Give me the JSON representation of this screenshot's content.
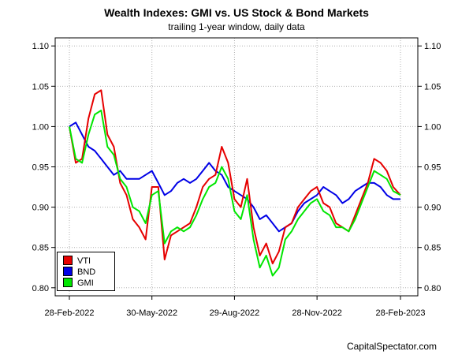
{
  "chart_data": {
    "type": "line",
    "title": "Wealth Indexes: GMI vs. US Stock & Bond Markets",
    "subtitle": "trailing 1-year window, daily data",
    "xlabel": "",
    "ylabel": "",
    "x_range": [
      "2022-02-28",
      "2023-02-28"
    ],
    "ylim": [
      0.79,
      1.11
    ],
    "y_ticks": [
      "0.80",
      "0.85",
      "0.90",
      "0.95",
      "1.00",
      "1.05",
      "1.10"
    ],
    "x_ticks": [
      {
        "date": "2022-02-28",
        "label": "28-Feb-2022"
      },
      {
        "date": "2022-05-30",
        "label": "30-May-2022"
      },
      {
        "date": "2022-08-29",
        "label": "29-Aug-2022"
      },
      {
        "date": "2022-11-28",
        "label": "28-Nov-2022"
      },
      {
        "date": "2023-02-28",
        "label": "28-Feb-2023"
      }
    ],
    "grid": true,
    "legend_position": "bottom-left",
    "series": [
      {
        "name": "VTI",
        "color": "#e60000",
        "points": [
          [
            "2022-02-28",
            1.0
          ],
          [
            "2022-03-07",
            0.955
          ],
          [
            "2022-03-14",
            0.96
          ],
          [
            "2022-03-21",
            1.01
          ],
          [
            "2022-03-28",
            1.04
          ],
          [
            "2022-04-04",
            1.045
          ],
          [
            "2022-04-11",
            0.99
          ],
          [
            "2022-04-18",
            0.975
          ],
          [
            "2022-04-25",
            0.93
          ],
          [
            "2022-05-02",
            0.915
          ],
          [
            "2022-05-09",
            0.885
          ],
          [
            "2022-05-16",
            0.875
          ],
          [
            "2022-05-23",
            0.86
          ],
          [
            "2022-05-30",
            0.925
          ],
          [
            "2022-06-06",
            0.925
          ],
          [
            "2022-06-13",
            0.835
          ],
          [
            "2022-06-20",
            0.865
          ],
          [
            "2022-06-27",
            0.87
          ],
          [
            "2022-07-04",
            0.875
          ],
          [
            "2022-07-11",
            0.88
          ],
          [
            "2022-07-18",
            0.9
          ],
          [
            "2022-07-25",
            0.925
          ],
          [
            "2022-08-01",
            0.935
          ],
          [
            "2022-08-08",
            0.94
          ],
          [
            "2022-08-15",
            0.975
          ],
          [
            "2022-08-22",
            0.955
          ],
          [
            "2022-08-29",
            0.91
          ],
          [
            "2022-09-05",
            0.9
          ],
          [
            "2022-09-12",
            0.935
          ],
          [
            "2022-09-19",
            0.875
          ],
          [
            "2022-09-26",
            0.84
          ],
          [
            "2022-10-03",
            0.855
          ],
          [
            "2022-10-10",
            0.83
          ],
          [
            "2022-10-17",
            0.845
          ],
          [
            "2022-10-24",
            0.875
          ],
          [
            "2022-10-31",
            0.88
          ],
          [
            "2022-11-07",
            0.9
          ],
          [
            "2022-11-14",
            0.91
          ],
          [
            "2022-11-21",
            0.92
          ],
          [
            "2022-11-28",
            0.925
          ],
          [
            "2022-12-05",
            0.905
          ],
          [
            "2022-12-12",
            0.9
          ],
          [
            "2022-12-19",
            0.88
          ],
          [
            "2022-12-26",
            0.875
          ],
          [
            "2023-01-02",
            0.87
          ],
          [
            "2023-01-09",
            0.89
          ],
          [
            "2023-01-16",
            0.91
          ],
          [
            "2023-01-23",
            0.93
          ],
          [
            "2023-01-30",
            0.96
          ],
          [
            "2023-02-06",
            0.955
          ],
          [
            "2023-02-13",
            0.945
          ],
          [
            "2023-02-20",
            0.925
          ],
          [
            "2023-02-28",
            0.915
          ]
        ]
      },
      {
        "name": "BND",
        "color": "#0000e6",
        "points": [
          [
            "2022-02-28",
            1.0
          ],
          [
            "2022-03-07",
            1.005
          ],
          [
            "2022-03-14",
            0.99
          ],
          [
            "2022-03-21",
            0.975
          ],
          [
            "2022-03-28",
            0.97
          ],
          [
            "2022-04-04",
            0.96
          ],
          [
            "2022-04-11",
            0.95
          ],
          [
            "2022-04-18",
            0.94
          ],
          [
            "2022-04-25",
            0.945
          ],
          [
            "2022-05-02",
            0.935
          ],
          [
            "2022-05-09",
            0.935
          ],
          [
            "2022-05-16",
            0.935
          ],
          [
            "2022-05-23",
            0.94
          ],
          [
            "2022-05-30",
            0.945
          ],
          [
            "2022-06-06",
            0.93
          ],
          [
            "2022-06-13",
            0.915
          ],
          [
            "2022-06-20",
            0.92
          ],
          [
            "2022-06-27",
            0.93
          ],
          [
            "2022-07-04",
            0.935
          ],
          [
            "2022-07-11",
            0.93
          ],
          [
            "2022-07-18",
            0.935
          ],
          [
            "2022-07-25",
            0.945
          ],
          [
            "2022-08-01",
            0.955
          ],
          [
            "2022-08-08",
            0.945
          ],
          [
            "2022-08-15",
            0.94
          ],
          [
            "2022-08-22",
            0.925
          ],
          [
            "2022-08-29",
            0.92
          ],
          [
            "2022-09-05",
            0.915
          ],
          [
            "2022-09-12",
            0.91
          ],
          [
            "2022-09-19",
            0.9
          ],
          [
            "2022-09-26",
            0.885
          ],
          [
            "2022-10-03",
            0.89
          ],
          [
            "2022-10-10",
            0.88
          ],
          [
            "2022-10-17",
            0.87
          ],
          [
            "2022-10-24",
            0.875
          ],
          [
            "2022-10-31",
            0.88
          ],
          [
            "2022-11-07",
            0.895
          ],
          [
            "2022-11-14",
            0.905
          ],
          [
            "2022-11-21",
            0.91
          ],
          [
            "2022-11-28",
            0.915
          ],
          [
            "2022-12-05",
            0.925
          ],
          [
            "2022-12-12",
            0.92
          ],
          [
            "2022-12-19",
            0.915
          ],
          [
            "2022-12-26",
            0.905
          ],
          [
            "2023-01-02",
            0.91
          ],
          [
            "2023-01-09",
            0.92
          ],
          [
            "2023-01-16",
            0.925
          ],
          [
            "2023-01-23",
            0.93
          ],
          [
            "2023-01-30",
            0.93
          ],
          [
            "2023-02-06",
            0.925
          ],
          [
            "2023-02-13",
            0.915
          ],
          [
            "2023-02-20",
            0.91
          ],
          [
            "2023-02-28",
            0.91
          ]
        ]
      },
      {
        "name": "GMI",
        "color": "#00e600",
        "points": [
          [
            "2022-02-28",
            1.0
          ],
          [
            "2022-03-07",
            0.96
          ],
          [
            "2022-03-14",
            0.955
          ],
          [
            "2022-03-21",
            0.99
          ],
          [
            "2022-03-28",
            1.015
          ],
          [
            "2022-04-04",
            1.02
          ],
          [
            "2022-04-11",
            0.975
          ],
          [
            "2022-04-18",
            0.965
          ],
          [
            "2022-04-25",
            0.935
          ],
          [
            "2022-05-02",
            0.925
          ],
          [
            "2022-05-09",
            0.9
          ],
          [
            "2022-05-16",
            0.895
          ],
          [
            "2022-05-23",
            0.88
          ],
          [
            "2022-05-30",
            0.915
          ],
          [
            "2022-06-06",
            0.92
          ],
          [
            "2022-06-13",
            0.855
          ],
          [
            "2022-06-20",
            0.87
          ],
          [
            "2022-06-27",
            0.875
          ],
          [
            "2022-07-04",
            0.87
          ],
          [
            "2022-07-11",
            0.875
          ],
          [
            "2022-07-18",
            0.89
          ],
          [
            "2022-07-25",
            0.91
          ],
          [
            "2022-08-01",
            0.925
          ],
          [
            "2022-08-08",
            0.93
          ],
          [
            "2022-08-15",
            0.95
          ],
          [
            "2022-08-22",
            0.935
          ],
          [
            "2022-08-29",
            0.895
          ],
          [
            "2022-09-05",
            0.885
          ],
          [
            "2022-09-12",
            0.915
          ],
          [
            "2022-09-19",
            0.86
          ],
          [
            "2022-09-26",
            0.825
          ],
          [
            "2022-10-03",
            0.84
          ],
          [
            "2022-10-10",
            0.815
          ],
          [
            "2022-10-17",
            0.825
          ],
          [
            "2022-10-24",
            0.86
          ],
          [
            "2022-10-31",
            0.87
          ],
          [
            "2022-11-07",
            0.885
          ],
          [
            "2022-11-14",
            0.895
          ],
          [
            "2022-11-21",
            0.905
          ],
          [
            "2022-11-28",
            0.91
          ],
          [
            "2022-12-05",
            0.895
          ],
          [
            "2022-12-12",
            0.89
          ],
          [
            "2022-12-19",
            0.875
          ],
          [
            "2022-12-26",
            0.875
          ],
          [
            "2023-01-02",
            0.87
          ],
          [
            "2023-01-09",
            0.885
          ],
          [
            "2023-01-16",
            0.905
          ],
          [
            "2023-01-23",
            0.925
          ],
          [
            "2023-01-30",
            0.945
          ],
          [
            "2023-02-06",
            0.94
          ],
          [
            "2023-02-13",
            0.935
          ],
          [
            "2023-02-20",
            0.92
          ],
          [
            "2023-02-28",
            0.915
          ]
        ]
      }
    ]
  },
  "source_credit": "CapitalSpectator.com"
}
